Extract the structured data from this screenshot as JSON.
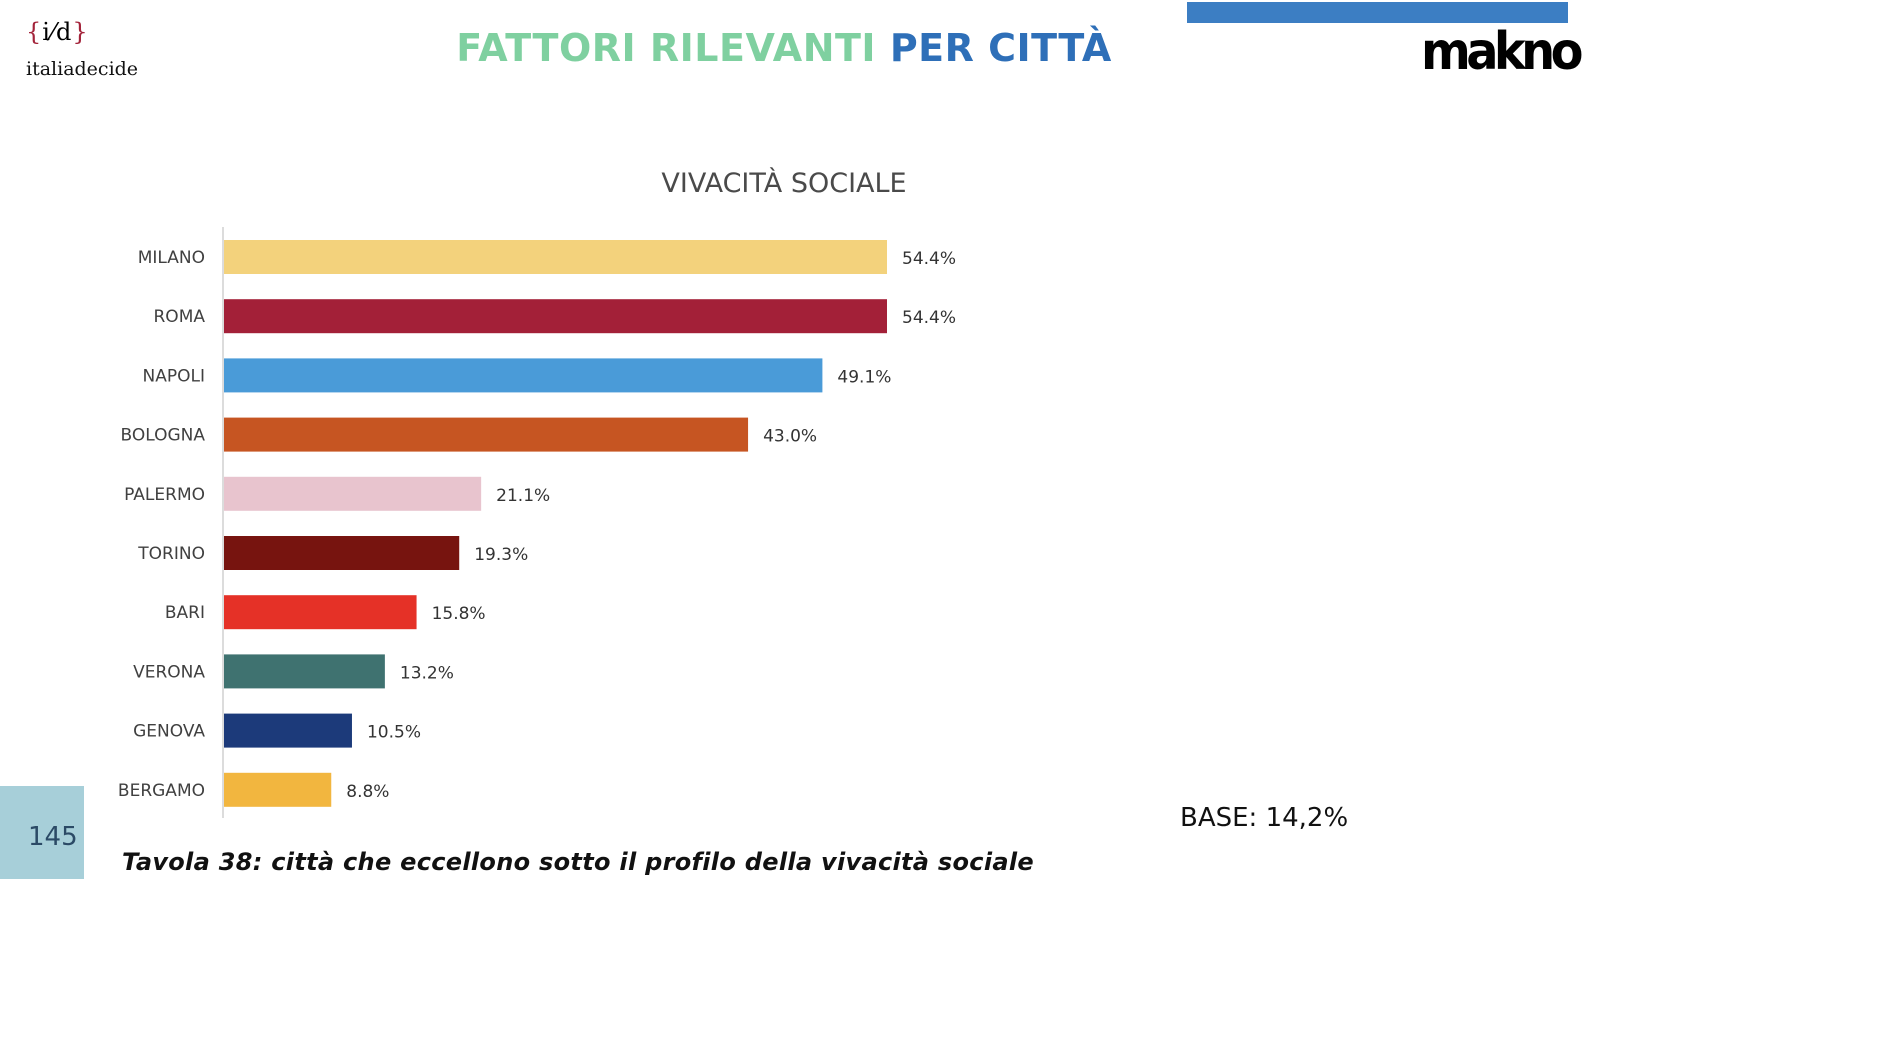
{
  "header": {
    "title_part1": "FATTORI RILEVANTI",
    "title_part2": "PER CITTÀ",
    "logo_left_mark_open": "{",
    "logo_left_mark_inner": "i⁄d",
    "logo_left_mark_close": "}",
    "logo_left_text": "italiadecide",
    "logo_right_text": "makno"
  },
  "colors": {
    "title_part1": "#7fd0a0",
    "title_part2": "#2e6fb8",
    "top_bar": "#3c7ec3",
    "page_badge": "#a7cfd9"
  },
  "chart_data": {
    "type": "bar",
    "orientation": "horizontal",
    "title": "VIVACITÀ SOCIALE",
    "categories": [
      "MILANO",
      "ROMA",
      "NAPOLI",
      "BOLOGNA",
      "PALERMO",
      "TORINO",
      "BARI",
      "VERONA",
      "GENOVA",
      "BERGAMO"
    ],
    "values": [
      54.4,
      54.4,
      49.1,
      43.0,
      21.1,
      19.3,
      15.8,
      13.2,
      10.5,
      8.8
    ],
    "value_labels": [
      "54.4%",
      "54.4%",
      "49.1%",
      "43.0%",
      "21.1%",
      "19.3%",
      "15.8%",
      "13.2%",
      "10.5%",
      "8.8%"
    ],
    "bar_colors": [
      "#f3d27c",
      "#a32038",
      "#4a9bd8",
      "#c65522",
      "#e8c4ce",
      "#77140f",
      "#e53127",
      "#3f7270",
      "#1c3a7a",
      "#f2b63f"
    ],
    "xlim": [
      0,
      60
    ],
    "grid": false,
    "legend": "none"
  },
  "footer": {
    "page_number": "145",
    "base_note": "BASE: 14,2%",
    "caption": "Tavola 38: città che eccellono sotto il profilo della vivacità sociale"
  }
}
